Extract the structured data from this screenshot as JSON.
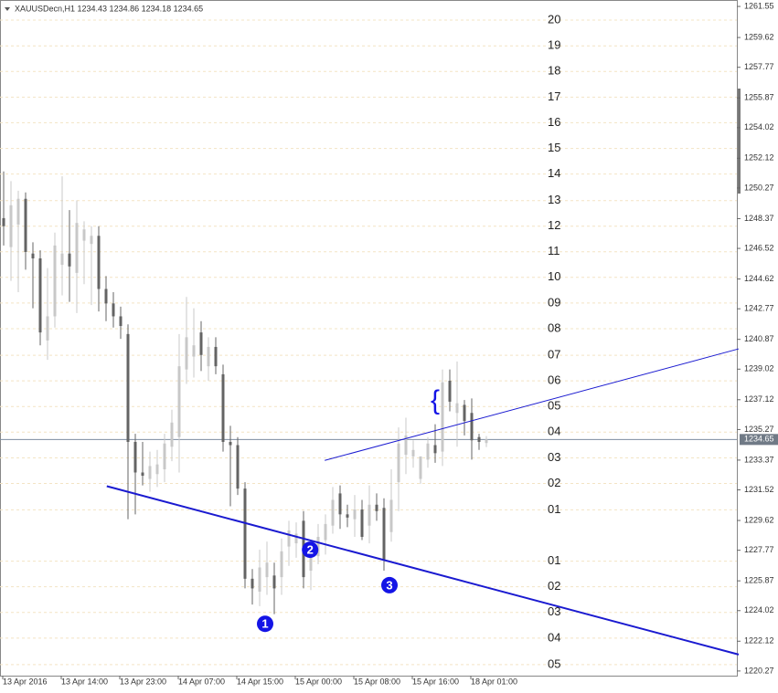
{
  "chart_data": {
    "type": "candlestick",
    "title": "XAUUSDecn,H1 1234.43 1234.86 1234.18 1234.65",
    "categories": [
      "13 Apr 2016",
      null,
      null,
      null,
      null,
      null,
      null,
      null,
      "13 Apr 14:00",
      null,
      null,
      null,
      null,
      null,
      null,
      null,
      "13 Apr 23:00",
      null,
      null,
      null,
      null,
      null,
      null,
      null,
      "14 Apr 07:00",
      null,
      null,
      null,
      null,
      null,
      null,
      null,
      "14 Apr 15:00",
      null,
      null,
      null,
      null,
      null,
      null,
      null,
      "15 Apr 00:00",
      null,
      null,
      null,
      null,
      null,
      null,
      null,
      "15 Apr 08:00",
      null,
      null,
      null,
      null,
      null,
      null,
      null,
      "15 Apr 16:00",
      null,
      null,
      null,
      null,
      null,
      null,
      null,
      "18 Apr 01:00",
      null,
      null
    ],
    "open": [
      1248.4,
      1246.6,
      1248.0,
      1249.6,
      1246.2,
      1245.9,
      1240.8,
      1242.3,
      1245.5,
      1246.2,
      1245.0,
      1247.0,
      1246.8,
      1247.3,
      1244.0,
      1243.1,
      1242.3,
      1241.2,
      1234.5,
      1232.6,
      1232.2,
      1232.5,
      1232.8,
      1234.2,
      1234.8,
      1239.0,
      1239.8,
      1241.3,
      1239.2,
      1240.4,
      1238.7,
      1234.5,
      1234.3,
      1231.6,
      1226.0,
      1225.2,
      1226.1,
      1226.2,
      1226.1,
      1228.0,
      1228.2,
      1229.6,
      1226.5,
      1227.4,
      1228.4,
      1229.3,
      1231.3,
      1230.0,
      1229.7,
      1230.3,
      1229.3,
      1230.6,
      1230.4,
      1228.9,
      1232.0,
      1233.7,
      1233.6,
      1232.2,
      1233.4,
      1234.3,
      1233.9,
      1238.3,
      1236.3,
      1236.8,
      1236.3,
      1234.8,
      1234.43
    ],
    "high": [
      1251.3,
      1250.7,
      1250.1,
      1250.0,
      1246.9,
      1246.4,
      1245.3,
      1247.5,
      1251.0,
      1248.9,
      1249.5,
      1248.2,
      1247.9,
      1247.9,
      1244.8,
      1243.8,
      1242.9,
      1241.8,
      1235.0,
      1234.5,
      1233.9,
      1234.0,
      1235.0,
      1236.5,
      1241.2,
      1243.5,
      1242.8,
      1242.0,
      1241.0,
      1241.0,
      1239.3,
      1235.5,
      1234.8,
      1232.0,
      1226.6,
      1227.8,
      1228.3,
      1227.0,
      1228.5,
      1229.6,
      1229.5,
      1230.2,
      1228.4,
      1229.4,
      1230.0,
      1231.7,
      1231.8,
      1230.6,
      1231.2,
      1230.9,
      1231.8,
      1231.3,
      1231.0,
      1232.8,
      1235.4,
      1236.0,
      1234.6,
      1233.5,
      1234.8,
      1235.6,
      1239.0,
      1239.0,
      1239.5,
      1237.1,
      1237.2,
      1235.0,
      1234.86
    ],
    "low": [
      1246.7,
      1244.5,
      1243.8,
      1245.2,
      1242.8,
      1240.5,
      1239.6,
      1241.6,
      1243.6,
      1243.2,
      1242.5,
      1244.3,
      1243.0,
      1242.6,
      1242.0,
      1241.6,
      1240.9,
      1229.7,
      1230.0,
      1231.8,
      1231.4,
      1231.7,
      1232.0,
      1233.3,
      1232.6,
      1238.1,
      1238.5,
      1238.9,
      1238.3,
      1238.7,
      1233.9,
      1230.5,
      1231.2,
      1225.4,
      1224.4,
      1224.3,
      1225.0,
      1223.8,
      1225.0,
      1226.8,
      1227.3,
      1225.4,
      1225.3,
      1226.9,
      1227.5,
      1228.8,
      1229.1,
      1229.2,
      1228.6,
      1228.4,
      1228.2,
      1229.6,
      1226.5,
      1228.3,
      1230.2,
      1232.5,
      1232.9,
      1231.9,
      1232.9,
      1233.2,
      1233.0,
      1236.4,
      1234.2,
      1234.9,
      1233.4,
      1234.0,
      1234.18
    ],
    "close": [
      1247.9,
      1249.2,
      1249.6,
      1246.3,
      1245.9,
      1241.3,
      1242.3,
      1246.7,
      1246.2,
      1245.4,
      1248.1,
      1247.7,
      1247.3,
      1244.0,
      1243.1,
      1242.3,
      1241.7,
      1234.5,
      1232.6,
      1232.4,
      1233.0,
      1233.1,
      1234.4,
      1235.7,
      1239.2,
      1241.0,
      1240.5,
      1239.9,
      1240.4,
      1239.2,
      1234.5,
      1234.3,
      1231.6,
      1226.0,
      1225.4,
      1226.7,
      1227.0,
      1225.4,
      1227.7,
      1229.0,
      1228.8,
      1226.1,
      1227.6,
      1228.6,
      1229.4,
      1230.9,
      1230.0,
      1229.8,
      1230.3,
      1228.6,
      1230.6,
      1230.2,
      1227.2,
      1230.9,
      1234.4,
      1234.9,
      1234.0,
      1233.6,
      1234.4,
      1233.8,
      1238.2,
      1237.0,
      1236.9,
      1235.8,
      1234.6,
      1234.5,
      1234.65
    ],
    "up_color": "#c8c8c8",
    "down_color": "#646464",
    "ylim": [
      1219.98,
      1261.95
    ],
    "yticks": [
      1261.55,
      1259.62,
      1257.77,
      1255.87,
      1254.02,
      1252.12,
      1250.27,
      1248.37,
      1246.52,
      1244.62,
      1242.77,
      1240.87,
      1239.02,
      1237.12,
      1235.27,
      1233.37,
      1231.52,
      1229.62,
      1227.77,
      1225.87,
      1224.02,
      1222.12,
      1220.27
    ],
    "current_price": 1234.65,
    "levels": [
      {
        "value": 1260.7,
        "label": "20"
      },
      {
        "value": 1259.1,
        "label": "19"
      },
      {
        "value": 1257.51,
        "label": "18"
      },
      {
        "value": 1255.92,
        "label": "17"
      },
      {
        "value": 1254.33,
        "label": "16"
      },
      {
        "value": 1252.73,
        "label": "15"
      },
      {
        "value": 1251.14,
        "label": "14"
      },
      {
        "value": 1249.49,
        "label": "13"
      },
      {
        "value": 1247.9,
        "label": "12"
      },
      {
        "value": 1246.31,
        "label": "11"
      },
      {
        "value": 1244.72,
        "label": "10"
      },
      {
        "value": 1243.13,
        "label": "09"
      },
      {
        "value": 1241.53,
        "label": "08"
      },
      {
        "value": 1239.88,
        "label": "07"
      },
      {
        "value": 1238.29,
        "label": "06"
      },
      {
        "value": 1236.7,
        "label": "05"
      },
      {
        "value": 1235.11,
        "label": "04"
      },
      {
        "value": 1233.51,
        "label": "03"
      },
      {
        "value": 1231.92,
        "label": "02"
      },
      {
        "value": 1230.28,
        "label": "01"
      },
      {
        "value": 1227.09,
        "label": "01"
      },
      {
        "value": 1225.5,
        "label": "02"
      },
      {
        "value": 1223.91,
        "label": "03"
      },
      {
        "value": 1222.31,
        "label": "04"
      },
      {
        "value": 1220.67,
        "label": "05"
      }
    ],
    "trendlines": [
      {
        "x": [
          14.1,
          100.5
        ],
        "y": [
          1231.75,
          1221.29
        ],
        "color": "#1a1ad0",
        "width": 2
      },
      {
        "x": [
          43.9,
          100.5
        ],
        "y": [
          1233.35,
          1240.28
        ],
        "color": "#1a1ad0",
        "width": 1
      }
    ],
    "markers": [
      {
        "label": "1",
        "x": 35.75,
        "y": 1223.2
      },
      {
        "label": "2",
        "x": 41.9,
        "y": 1227.8
      },
      {
        "label": "3",
        "x": 52.75,
        "y": 1225.6
      }
    ],
    "braces": [
      {
        "label": "{",
        "x": 59,
        "y": 1237.0
      }
    ],
    "marker_color": "#1414e6"
  }
}
